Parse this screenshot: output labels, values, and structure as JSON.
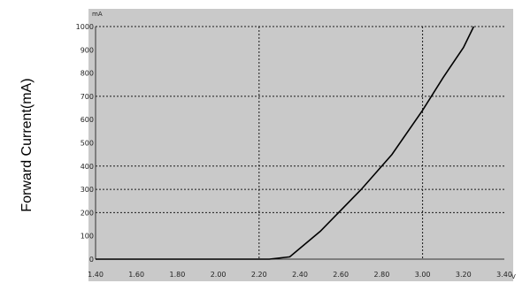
{
  "chart_data": {
    "type": "line",
    "title": "",
    "ylabel": "Forward Current(mA)",
    "xlabel": "",
    "y_unit": "mA",
    "x_unit": "V",
    "xlim": [
      1.4,
      3.4
    ],
    "ylim": [
      0,
      1000
    ],
    "x_ticks": [
      "1.40",
      "1.60",
      "1.80",
      "2.00",
      "2.20",
      "2.40",
      "2.60",
      "2.80",
      "3.00",
      "3.20",
      "3.40"
    ],
    "y_ticks": [
      "1000",
      "900",
      "800",
      "700",
      "600",
      "500",
      "400",
      "300",
      "200",
      "100",
      "0"
    ],
    "x_gridlines": [
      2.2,
      3.0
    ],
    "y_gridlines": [
      1000,
      700,
      400,
      300,
      200
    ],
    "grid_style": "dotted",
    "legend": "none",
    "series": [
      {
        "x": [
          1.4,
          1.8,
          2.0,
          2.25,
          2.35,
          2.5,
          2.7,
          2.85,
          3.0,
          3.1,
          3.2,
          3.25
        ],
        "y": [
          0,
          0,
          0,
          0,
          10,
          120,
          300,
          450,
          640,
          780,
          910,
          1000
        ]
      }
    ],
    "colors": {
      "plot_bg": "#c9c9c9",
      "line": "#000000",
      "grid": "#1a1a1a"
    }
  }
}
